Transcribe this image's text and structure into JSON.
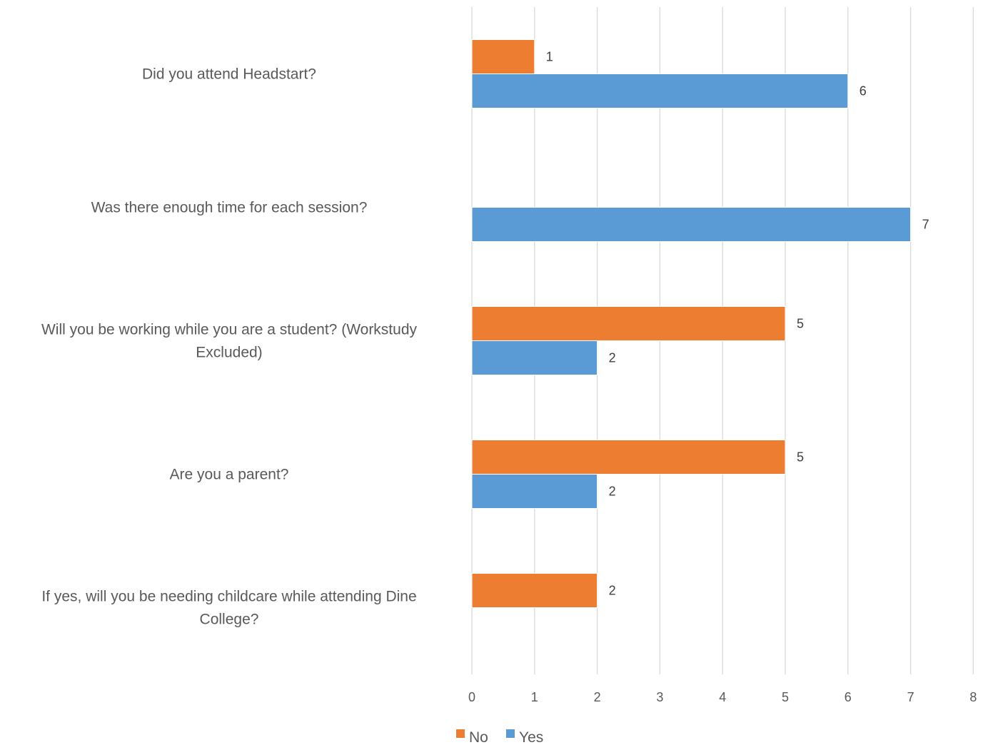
{
  "chart_data": {
    "type": "bar",
    "orientation": "horizontal",
    "categories": [
      "Did you attend Headstart?",
      "Was there enough time for each session?",
      "Will you be working while you are a student? (Workstudy Excluded)",
      "Are you a parent?",
      "If yes, will you be needing childcare while attending Dine College?"
    ],
    "category_lines": [
      [
        "Did you attend Headstart?"
      ],
      [
        "Was there enough time for each session?"
      ],
      [
        "Will you be working while you are a student? (Workstudy",
        "Excluded)"
      ],
      [
        "Are you a parent?"
      ],
      [
        "If yes, will you be needing childcare while attending Dine",
        "College?"
      ]
    ],
    "series": [
      {
        "name": "No",
        "color": "#ED7D31",
        "values": [
          1,
          null,
          5,
          5,
          2
        ]
      },
      {
        "name": "Yes",
        "color": "#5B9BD5",
        "values": [
          6,
          7,
          2,
          2,
          null
        ]
      }
    ],
    "xlim": [
      0,
      8
    ],
    "x_ticks": [
      0,
      1,
      2,
      3,
      4,
      5,
      6,
      7,
      8
    ],
    "grid": true,
    "legend_position": "bottom",
    "data_labels": true,
    "title": "",
    "xlabel": "",
    "ylabel": ""
  }
}
